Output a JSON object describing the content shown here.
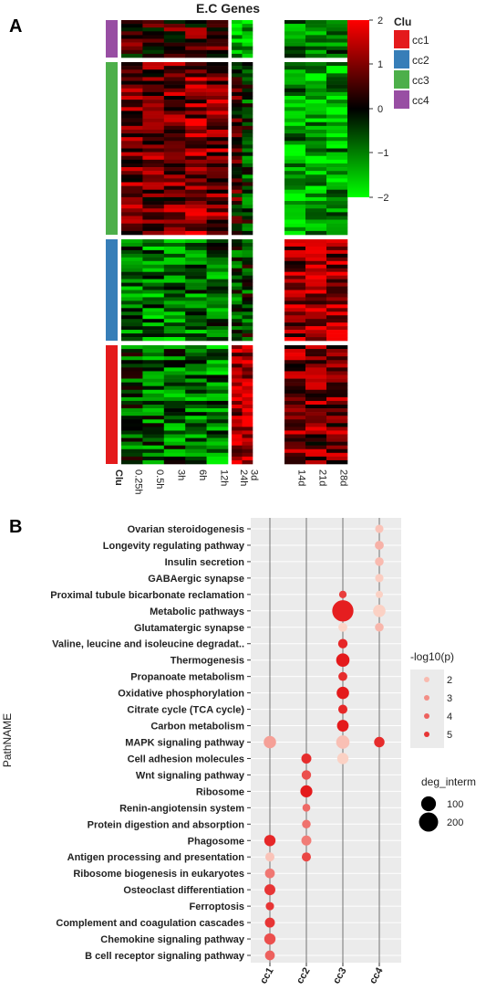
{
  "panels": {
    "a_letter": "A",
    "b_letter": "B"
  },
  "heatmap": {
    "title": "E.C Genes",
    "columns": [
      "0.25h",
      "0.5h",
      "3h",
      "6h",
      "12h",
      "24h",
      "3d",
      "14d",
      "21d",
      "28d"
    ],
    "row_label": "Clu",
    "color_scale": {
      "ticks": [
        "2",
        "1",
        "0",
        "−1",
        "−2"
      ],
      "colors": [
        "#00ff00",
        "#000000",
        "#ff0000"
      ]
    },
    "cluster_legend": {
      "title": "Clu",
      "items": [
        {
          "label": "cc1",
          "color": "#e41a1c"
        },
        {
          "label": "cc2",
          "color": "#377eb8"
        },
        {
          "label": "cc3",
          "color": "#4daf4a"
        },
        {
          "label": "cc4",
          "color": "#984ea3"
        }
      ]
    },
    "cluster_order": [
      "cc4",
      "cc3",
      "cc2",
      "cc1"
    ]
  },
  "chart_data": {
    "type": "scatter",
    "ylabel": "PathNAME",
    "xlabel": "",
    "x_categories": [
      "cc1",
      "cc2",
      "cc3",
      "cc4"
    ],
    "pathways": [
      "Ovarian steroidogenesis",
      "Longevity regulating pathway",
      "Insulin secretion",
      "GABAergic synapse",
      "Proximal tubule bicarbonate reclamation",
      "Metabolic pathways",
      "Glutamatergic synapse",
      "Valine, leucine and isoleucine degradat..",
      "Thermogenesis",
      "Propanoate metabolism",
      "Oxidative phosphorylation",
      "Citrate cycle (TCA cycle)",
      "Carbon metabolism",
      "MAPK signaling pathway",
      "Cell adhesion molecules",
      "Wnt signaling pathway",
      "Ribosome",
      "Renin-angiotensin system",
      "Protein digestion and absorption",
      "Phagosome",
      "Antigen processing and presentation",
      "Ribosome biogenesis in eukaryotes",
      "Osteoclast differentiation",
      "Ferroptosis",
      "Complement and coagulation cascades",
      "Chemokine signaling pathway",
      "B cell receptor signaling pathway"
    ],
    "points": [
      {
        "pathway": "Ovarian steroidogenesis",
        "cluster": "cc4",
        "log10p": 1.8,
        "deg": 15
      },
      {
        "pathway": "Longevity regulating pathway",
        "cluster": "cc4",
        "log10p": 2.2,
        "deg": 20
      },
      {
        "pathway": "Insulin secretion",
        "cluster": "cc4",
        "log10p": 2.0,
        "deg": 18
      },
      {
        "pathway": "GABAergic synapse",
        "cluster": "cc4",
        "log10p": 1.6,
        "deg": 15
      },
      {
        "pathway": "Proximal tubule bicarbonate reclamation",
        "cluster": "cc3",
        "log10p": 4.8,
        "deg": 10
      },
      {
        "pathway": "Proximal tubule bicarbonate reclamation",
        "cluster": "cc4",
        "log10p": 1.5,
        "deg": 8
      },
      {
        "pathway": "Metabolic pathways",
        "cluster": "cc3",
        "log10p": 5.5,
        "deg": 260
      },
      {
        "pathway": "Metabolic pathways",
        "cluster": "cc4",
        "log10p": 1.5,
        "deg": 60
      },
      {
        "pathway": "Glutamatergic synapse",
        "cluster": "cc3",
        "log10p": 1.4,
        "deg": 20
      },
      {
        "pathway": "Glutamatergic synapse",
        "cluster": "cc4",
        "log10p": 2.1,
        "deg": 18
      },
      {
        "pathway": "Valine, leucine and isoleucine degradat..",
        "cluster": "cc3",
        "log10p": 5.3,
        "deg": 25
      },
      {
        "pathway": "Thermogenesis",
        "cluster": "cc3",
        "log10p": 5.6,
        "deg": 75
      },
      {
        "pathway": "Propanoate metabolism",
        "cluster": "cc3",
        "log10p": 5.2,
        "deg": 20
      },
      {
        "pathway": "Oxidative phosphorylation",
        "cluster": "cc3",
        "log10p": 5.6,
        "deg": 60
      },
      {
        "pathway": "Citrate cycle (TCA cycle)",
        "cluster": "cc3",
        "log10p": 5.3,
        "deg": 22
      },
      {
        "pathway": "Carbon metabolism",
        "cluster": "cc3",
        "log10p": 5.6,
        "deg": 50
      },
      {
        "pathway": "MAPK signaling pathway",
        "cluster": "cc1",
        "log10p": 2.6,
        "deg": 60
      },
      {
        "pathway": "MAPK signaling pathway",
        "cluster": "cc3",
        "log10p": 1.9,
        "deg": 75
      },
      {
        "pathway": "MAPK signaling pathway",
        "cluster": "cc4",
        "log10p": 5.2,
        "deg": 35
      },
      {
        "pathway": "Cell adhesion molecules",
        "cluster": "cc2",
        "log10p": 5.2,
        "deg": 30
      },
      {
        "pathway": "Cell adhesion molecules",
        "cluster": "cc3",
        "log10p": 1.5,
        "deg": 45
      },
      {
        "pathway": "Wnt signaling pathway",
        "cluster": "cc2",
        "log10p": 4.4,
        "deg": 25
      },
      {
        "pathway": "Ribosome",
        "cluster": "cc2",
        "log10p": 5.6,
        "deg": 55
      },
      {
        "pathway": "Renin-angiotensin system",
        "cluster": "cc2",
        "log10p": 3.8,
        "deg": 12
      },
      {
        "pathway": "Protein digestion and absorption",
        "cluster": "cc2",
        "log10p": 3.6,
        "deg": 18
      },
      {
        "pathway": "Phagosome",
        "cluster": "cc1",
        "log10p": 5.3,
        "deg": 45
      },
      {
        "pathway": "Phagosome",
        "cluster": "cc2",
        "log10p": 3.4,
        "deg": 30
      },
      {
        "pathway": "Antigen processing and presentation",
        "cluster": "cc1",
        "log10p": 1.8,
        "deg": 22
      },
      {
        "pathway": "Antigen processing and presentation",
        "cluster": "cc2",
        "log10p": 4.6,
        "deg": 22
      },
      {
        "pathway": "Ribosome biogenesis in eukaryotes",
        "cluster": "cc1",
        "log10p": 3.5,
        "deg": 28
      },
      {
        "pathway": "Osteoclast differentiation",
        "cluster": "cc1",
        "log10p": 5.0,
        "deg": 40
      },
      {
        "pathway": "Ferroptosis",
        "cluster": "cc1",
        "log10p": 5.0,
        "deg": 15
      },
      {
        "pathway": "Complement and coagulation cascades",
        "cluster": "cc1",
        "log10p": 5.0,
        "deg": 30
      },
      {
        "pathway": "Chemokine signaling pathway",
        "cluster": "cc1",
        "log10p": 4.4,
        "deg": 45
      },
      {
        "pathway": "B cell receptor signaling pathway",
        "cluster": "cc1",
        "log10p": 4.0,
        "deg": 28
      }
    ],
    "legend_color": {
      "title": "-log10(p)",
      "values": [
        2,
        3,
        4,
        5
      ]
    },
    "legend_size": {
      "title": "deg_interm",
      "values": [
        100,
        200
      ]
    },
    "colors": {
      "low": "#fcd5c8",
      "high": "#e41a1c",
      "panel_bg": "#ebebeb",
      "grid": "#ffffff"
    }
  }
}
